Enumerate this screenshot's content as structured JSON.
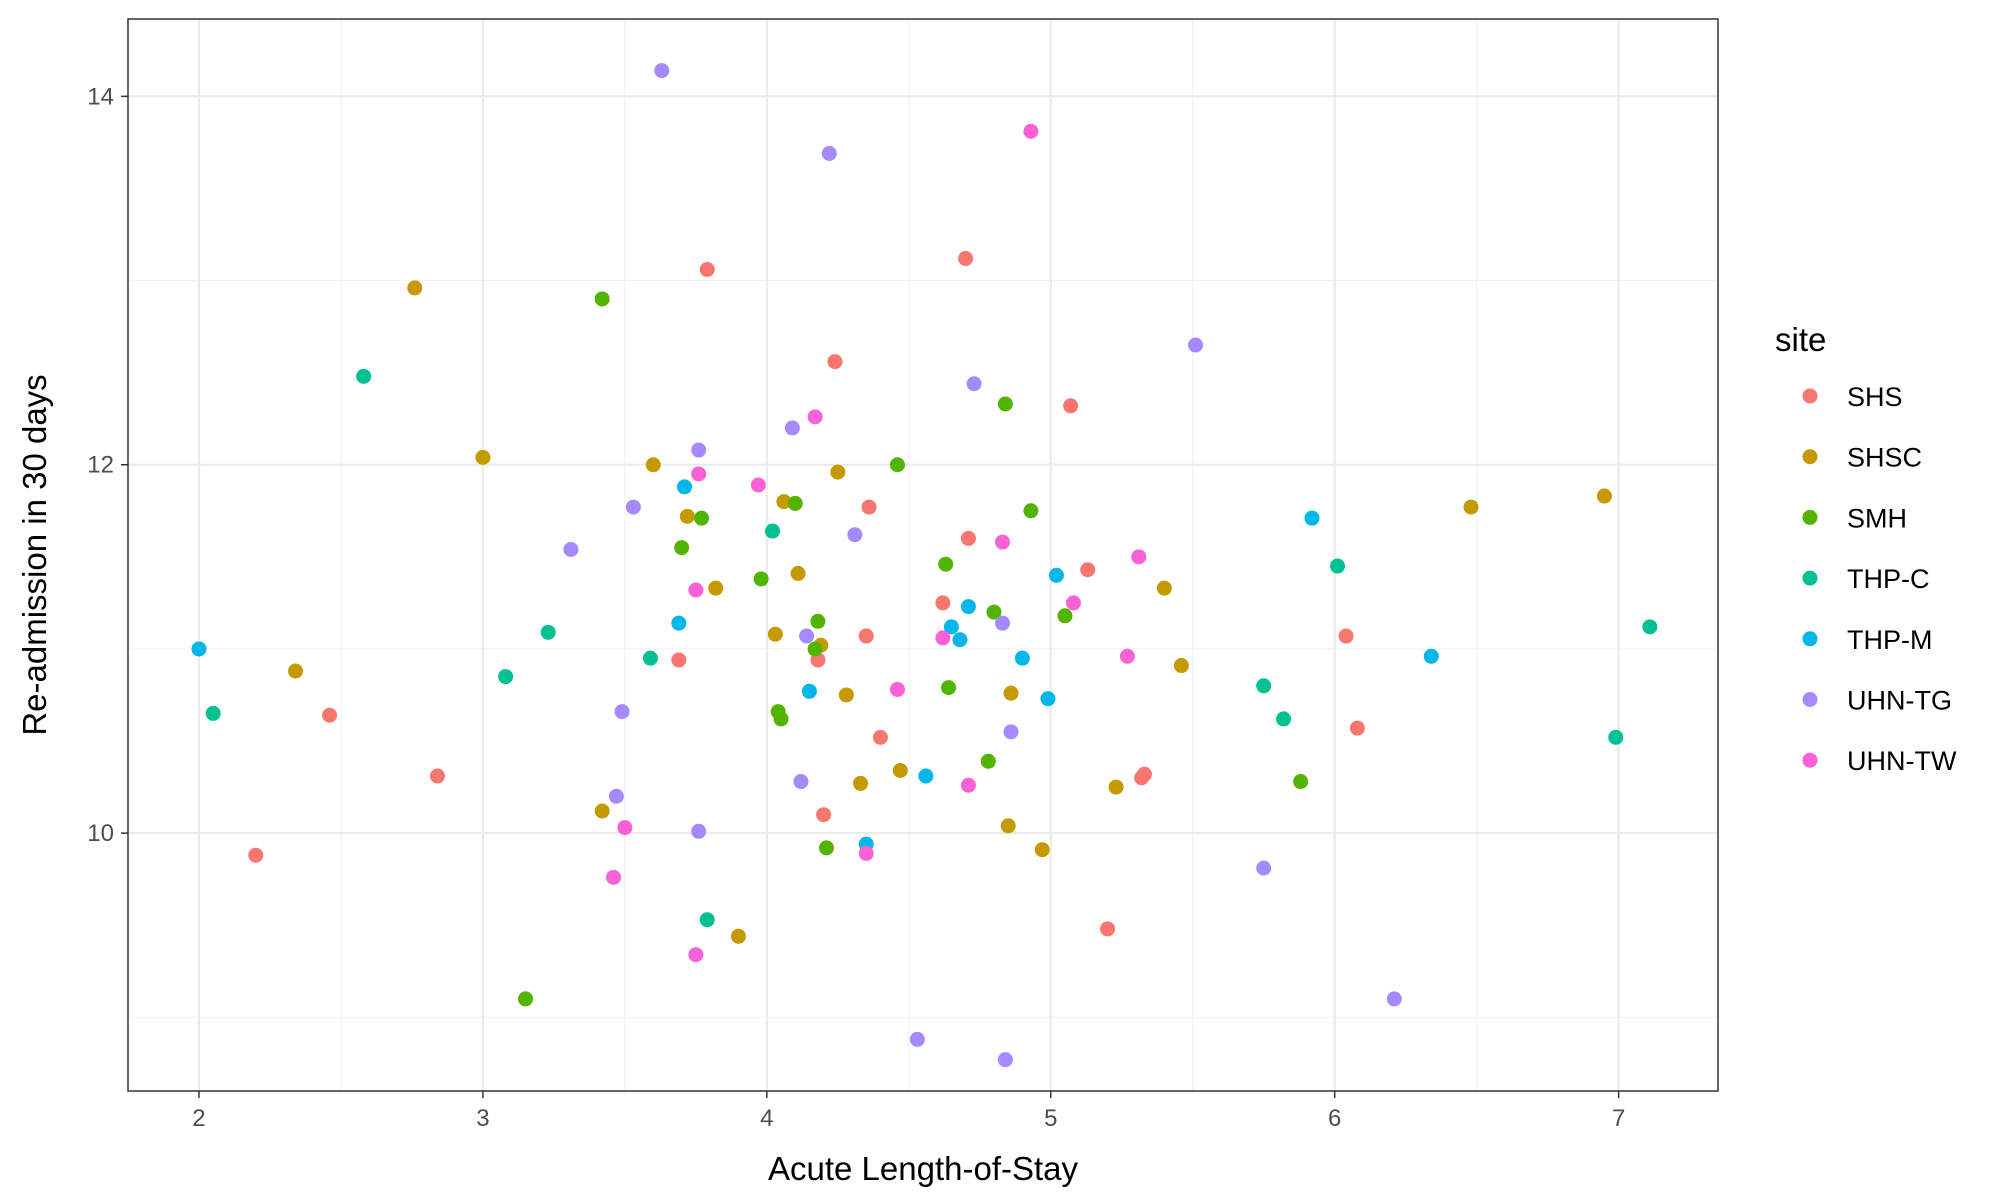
{
  "chart_data": {
    "type": "scatter",
    "xlabel": "Acute Length-of-Stay",
    "ylabel": "Re-admission in 30 days",
    "xlim": [
      1.75,
      7.35
    ],
    "ylim": [
      8.6,
      14.42
    ],
    "x_ticks": [
      2,
      3,
      4,
      5,
      6,
      7
    ],
    "y_ticks": [
      10,
      12,
      14
    ],
    "x_tick_labels": [
      "2",
      "3",
      "4",
      "5",
      "6",
      "7"
    ],
    "y_tick_labels": [
      "10",
      "12",
      "14"
    ],
    "grid": true,
    "legend": {
      "title": "site",
      "placement": "right"
    },
    "series": [
      {
        "name": "SHS",
        "color": "#F8766D",
        "points": [
          [
            2.2,
            9.88
          ],
          [
            2.46,
            10.64
          ],
          [
            2.84,
            10.31
          ],
          [
            3.69,
            10.94
          ],
          [
            3.79,
            13.06
          ],
          [
            4.18,
            10.94
          ],
          [
            4.2,
            10.1
          ],
          [
            4.24,
            12.56
          ],
          [
            4.35,
            11.07
          ],
          [
            4.36,
            11.77
          ],
          [
            4.4,
            10.52
          ],
          [
            4.62,
            11.25
          ],
          [
            4.7,
            13.12
          ],
          [
            4.71,
            11.6
          ],
          [
            5.07,
            12.32
          ],
          [
            5.13,
            11.43
          ],
          [
            5.2,
            9.48
          ],
          [
            5.32,
            10.3
          ],
          [
            5.33,
            10.32
          ],
          [
            6.04,
            11.07
          ],
          [
            6.08,
            10.57
          ]
        ]
      },
      {
        "name": "SHSC",
        "color": "#C49A00",
        "points": [
          [
            2.34,
            10.88
          ],
          [
            2.76,
            12.96
          ],
          [
            3.0,
            12.04
          ],
          [
            3.42,
            10.12
          ],
          [
            3.6,
            12.0
          ],
          [
            3.72,
            11.72
          ],
          [
            3.82,
            11.33
          ],
          [
            3.9,
            9.44
          ],
          [
            4.03,
            11.08
          ],
          [
            4.06,
            11.8
          ],
          [
            4.11,
            11.41
          ],
          [
            4.19,
            11.02
          ],
          [
            4.25,
            11.96
          ],
          [
            4.28,
            10.75
          ],
          [
            4.33,
            10.27
          ],
          [
            4.47,
            10.34
          ],
          [
            4.85,
            10.04
          ],
          [
            4.86,
            10.76
          ],
          [
            4.97,
            9.91
          ],
          [
            5.23,
            10.25
          ],
          [
            5.4,
            11.33
          ],
          [
            5.46,
            10.91
          ],
          [
            6.48,
            11.77
          ],
          [
            6.95,
            11.83
          ]
        ]
      },
      {
        "name": "SMH",
        "color": "#53B400",
        "points": [
          [
            3.15,
            9.1
          ],
          [
            3.42,
            12.9
          ],
          [
            3.7,
            11.55
          ],
          [
            3.77,
            11.71
          ],
          [
            3.98,
            11.38
          ],
          [
            4.04,
            10.66
          ],
          [
            4.05,
            10.62
          ],
          [
            4.1,
            11.79
          ],
          [
            4.17,
            11.0
          ],
          [
            4.18,
            11.15
          ],
          [
            4.21,
            9.92
          ],
          [
            4.46,
            12.0
          ],
          [
            4.63,
            11.46
          ],
          [
            4.64,
            10.79
          ],
          [
            4.78,
            10.39
          ],
          [
            4.8,
            11.2
          ],
          [
            4.84,
            12.33
          ],
          [
            4.93,
            11.75
          ],
          [
            5.05,
            11.18
          ],
          [
            5.88,
            10.28
          ]
        ]
      },
      {
        "name": "THP-C",
        "color": "#00C094",
        "points": [
          [
            2.05,
            10.65
          ],
          [
            2.58,
            12.48
          ],
          [
            3.08,
            10.85
          ],
          [
            3.23,
            11.09
          ],
          [
            3.59,
            10.95
          ],
          [
            3.79,
            9.53
          ],
          [
            4.02,
            11.64
          ],
          [
            5.75,
            10.8
          ],
          [
            5.82,
            10.62
          ],
          [
            6.01,
            11.45
          ],
          [
            6.99,
            10.52
          ],
          [
            7.11,
            11.12
          ]
        ]
      },
      {
        "name": "THP-M",
        "color": "#00B6EB",
        "points": [
          [
            2.0,
            11.0
          ],
          [
            3.69,
            11.14
          ],
          [
            3.71,
            11.88
          ],
          [
            4.15,
            10.77
          ],
          [
            4.35,
            9.94
          ],
          [
            4.56,
            10.31
          ],
          [
            4.65,
            11.12
          ],
          [
            4.68,
            11.05
          ],
          [
            4.71,
            11.23
          ],
          [
            4.9,
            10.95
          ],
          [
            4.99,
            10.73
          ],
          [
            5.02,
            11.4
          ],
          [
            5.92,
            11.71
          ],
          [
            6.34,
            10.96
          ]
        ]
      },
      {
        "name": "UHN-TG",
        "color": "#A58AFF",
        "points": [
          [
            3.31,
            11.54
          ],
          [
            3.47,
            10.2
          ],
          [
            3.49,
            10.66
          ],
          [
            3.53,
            11.77
          ],
          [
            3.63,
            14.14
          ],
          [
            3.76,
            12.08
          ],
          [
            3.76,
            10.01
          ],
          [
            4.09,
            12.2
          ],
          [
            4.12,
            10.28
          ],
          [
            4.14,
            11.07
          ],
          [
            4.22,
            13.69
          ],
          [
            4.31,
            11.62
          ],
          [
            4.53,
            8.88
          ],
          [
            4.73,
            12.44
          ],
          [
            4.83,
            11.14
          ],
          [
            4.84,
            8.77
          ],
          [
            4.86,
            10.55
          ],
          [
            5.51,
            12.65
          ],
          [
            5.75,
            9.81
          ],
          [
            6.21,
            9.1
          ]
        ]
      },
      {
        "name": "UHN-TW",
        "color": "#FB61D7",
        "points": [
          [
            3.46,
            9.76
          ],
          [
            3.5,
            10.03
          ],
          [
            3.75,
            11.32
          ],
          [
            3.75,
            9.34
          ],
          [
            3.76,
            11.95
          ],
          [
            3.97,
            11.89
          ],
          [
            4.17,
            12.26
          ],
          [
            4.35,
            9.89
          ],
          [
            4.46,
            10.78
          ],
          [
            4.62,
            11.06
          ],
          [
            4.71,
            10.26
          ],
          [
            4.93,
            13.81
          ],
          [
            4.83,
            11.58
          ],
          [
            5.08,
            11.25
          ],
          [
            5.27,
            10.96
          ],
          [
            5.31,
            11.5
          ]
        ]
      }
    ]
  }
}
